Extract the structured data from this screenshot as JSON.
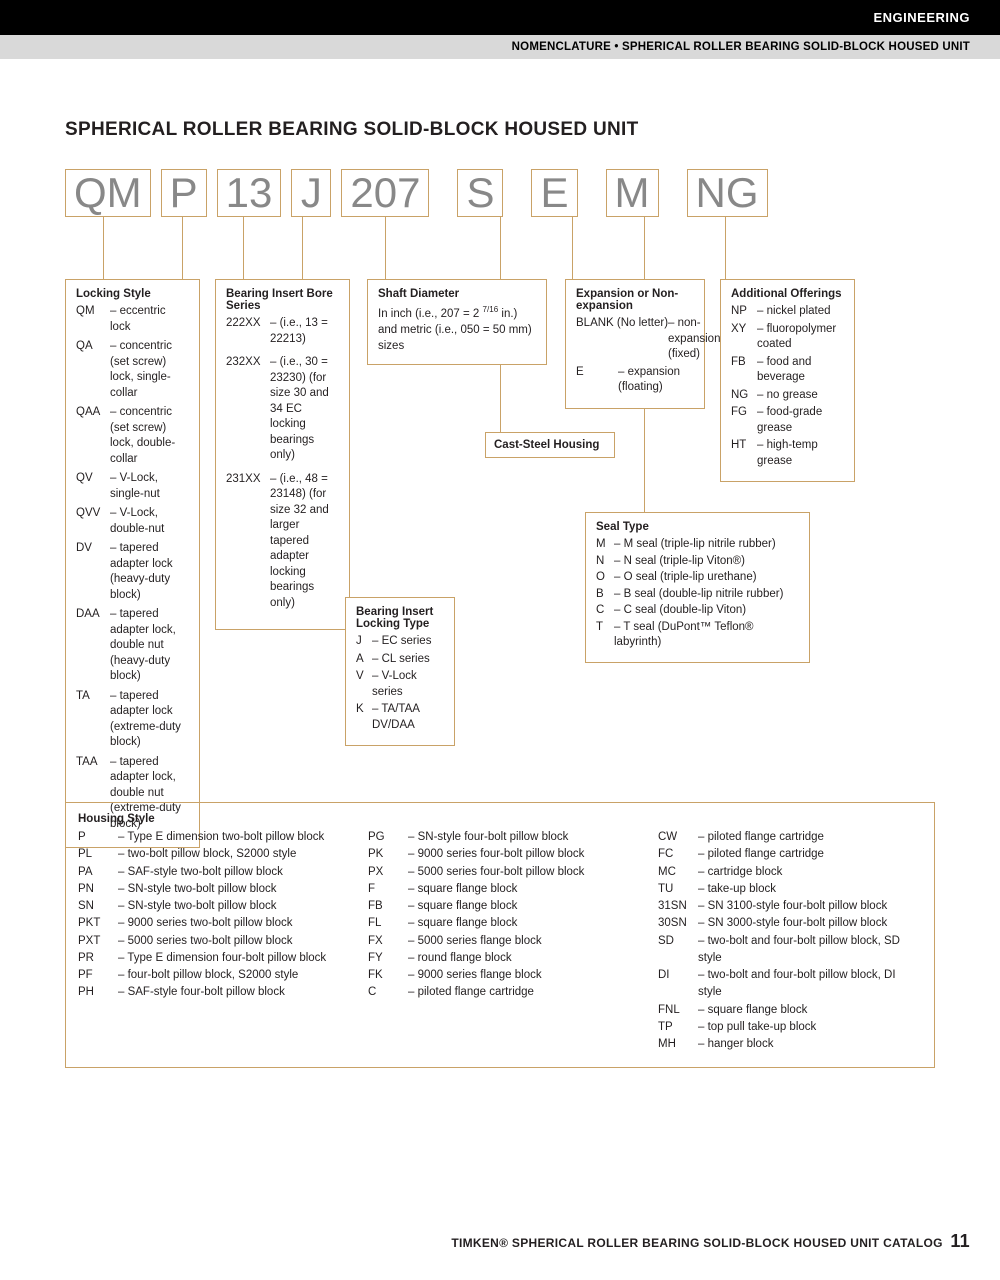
{
  "header": {
    "section": "ENGINEERING",
    "breadcrumb": "NOMENCLATURE • SPHERICAL ROLLER BEARING SOLID-BLOCK HOUSED UNIT"
  },
  "title": "SPHERICAL ROLLER BEARING SOLID-BLOCK HOUSED UNIT",
  "code_parts": [
    "QM",
    "P",
    "13",
    "J",
    "207",
    "S",
    "E",
    "M",
    "NG"
  ],
  "locking_style": {
    "title": "Locking Style",
    "items": [
      {
        "c": "QM",
        "t": "eccentric lock"
      },
      {
        "c": "QA",
        "t": "concentric (set screw) lock, single-collar"
      },
      {
        "c": "QAA",
        "t": "concentric (set screw) lock, double-collar"
      },
      {
        "c": "QV",
        "t": "V-Lock, single-nut"
      },
      {
        "c": "QVV",
        "t": "V-Lock, double-nut"
      },
      {
        "c": "DV",
        "t": "tapered adapter lock (heavy-duty block)"
      },
      {
        "c": "DAA",
        "t": "tapered adapter lock, double nut (heavy-duty block)"
      },
      {
        "c": "TA",
        "t": "tapered adapter lock (extreme-duty block)"
      },
      {
        "c": "TAA",
        "t": "tapered adapter lock, double nut (extreme-duty block)"
      }
    ]
  },
  "bore_series": {
    "title": "Bearing Insert Bore Series",
    "items": [
      {
        "c": "222XX",
        "t": "(i.e., 13 = 22213)"
      },
      {
        "c": "232XX",
        "t": "(i.e., 30 = 23230) (for size 30 and 34 EC locking bearings only)"
      },
      {
        "c": "231XX",
        "t": "(i.e., 48 = 23148) (for size 32 and larger tapered adapter locking bearings only)"
      }
    ]
  },
  "lock_type": {
    "title": "Bearing Insert Locking Type",
    "items": [
      {
        "c": "J",
        "t": "EC series"
      },
      {
        "c": "A",
        "t": "CL series"
      },
      {
        "c": "V",
        "t": "V-Lock series"
      },
      {
        "c": "K",
        "t": "TA/TAA DV/DAA"
      }
    ]
  },
  "shaft_diameter": {
    "title": "Shaft Diameter",
    "text_a": "In inch (i.e., 207 = 2 ",
    "text_frac": "7/16",
    "text_b": " in.) and metric (i.e., 050 = 50 mm) sizes"
  },
  "cast_steel": "Cast-Steel Housing",
  "expansion": {
    "title": "Expansion or Non-expansion",
    "items": [
      {
        "c": "BLANK (No letter)",
        "t": "non-expansion (fixed)"
      },
      {
        "c": "E",
        "t": "expansion (floating)"
      }
    ]
  },
  "seal_type": {
    "title": "Seal Type",
    "items": [
      {
        "c": "M",
        "t": "M seal (triple-lip nitrile rubber)"
      },
      {
        "c": "N",
        "t": "N seal (triple-lip Viton®)"
      },
      {
        "c": "O",
        "t": "O seal (triple-lip urethane)"
      },
      {
        "c": "B",
        "t": "B seal (double-lip nitrile rubber)"
      },
      {
        "c": "C",
        "t": "C seal (double-lip Viton)"
      },
      {
        "c": "T",
        "t": "T seal (DuPont™ Teflon® labyrinth)"
      }
    ]
  },
  "additional": {
    "title": "Additional Offerings",
    "items": [
      {
        "c": "NP",
        "t": "nickel plated"
      },
      {
        "c": "XY",
        "t": "fluoropolymer coated"
      },
      {
        "c": "FB",
        "t": "food and beverage"
      },
      {
        "c": "NG",
        "t": "no grease"
      },
      {
        "c": "FG",
        "t": "food-grade grease"
      },
      {
        "c": "HT",
        "t": "high-temp grease"
      }
    ]
  },
  "housing": {
    "title": "Housing Style",
    "col1": [
      {
        "c": "P",
        "t": "Type E dimension two-bolt pillow block"
      },
      {
        "c": "PL",
        "t": "two-bolt pillow block, S2000 style"
      },
      {
        "c": "PA",
        "t": "SAF-style two-bolt pillow block"
      },
      {
        "c": "PN",
        "t": "SN-style two-bolt pillow block"
      },
      {
        "c": "SN",
        "t": "SN-style two-bolt pillow block"
      },
      {
        "c": "PKT",
        "t": "9000 series two-bolt pillow block"
      },
      {
        "c": "PXT",
        "t": "5000 series two-bolt pillow block"
      },
      {
        "c": "PR",
        "t": "Type E dimension four-bolt pillow block"
      },
      {
        "c": "PF",
        "t": "four-bolt pillow block, S2000 style"
      },
      {
        "c": "PH",
        "t": "SAF-style four-bolt pillow block"
      }
    ],
    "col2": [
      {
        "c": "PG",
        "t": "SN-style four-bolt pillow block"
      },
      {
        "c": "PK",
        "t": "9000 series four-bolt pillow block"
      },
      {
        "c": "PX",
        "t": "5000 series four-bolt pillow block"
      },
      {
        "c": "F",
        "t": "square flange block"
      },
      {
        "c": "FB",
        "t": "square flange block"
      },
      {
        "c": "FL",
        "t": "square flange block"
      },
      {
        "c": "FX",
        "t": "5000 series flange block"
      },
      {
        "c": "FY",
        "t": "round flange block"
      },
      {
        "c": "FK",
        "t": "9000 series flange block"
      },
      {
        "c": "C",
        "t": "piloted flange cartridge"
      }
    ],
    "col3": [
      {
        "c": "CW",
        "t": "piloted flange cartridge"
      },
      {
        "c": "FC",
        "t": "piloted flange cartridge"
      },
      {
        "c": "MC",
        "t": "cartridge block"
      },
      {
        "c": "TU",
        "t": "take-up block"
      },
      {
        "c": "31SN",
        "t": "SN 3100-style four-bolt pillow block"
      },
      {
        "c": "30SN",
        "t": "SN 3000-style four-bolt pillow block"
      },
      {
        "c": "SD",
        "t": "two-bolt and four-bolt pillow block, SD style"
      },
      {
        "c": "DI",
        "t": "two-bolt and four-bolt pillow block, DI style"
      },
      {
        "c": "FNL",
        "t": "square flange block"
      },
      {
        "c": "TP",
        "t": "top pull take-up block"
      },
      {
        "c": "MH",
        "t": "hanger block"
      }
    ]
  },
  "footer": {
    "text": "TIMKEN® SPHERICAL ROLLER BEARING SOLID-BLOCK HOUSED UNIT CATALOG",
    "page": "11"
  },
  "colors": {
    "accent": "#c9a267",
    "codegray": "#888888"
  }
}
